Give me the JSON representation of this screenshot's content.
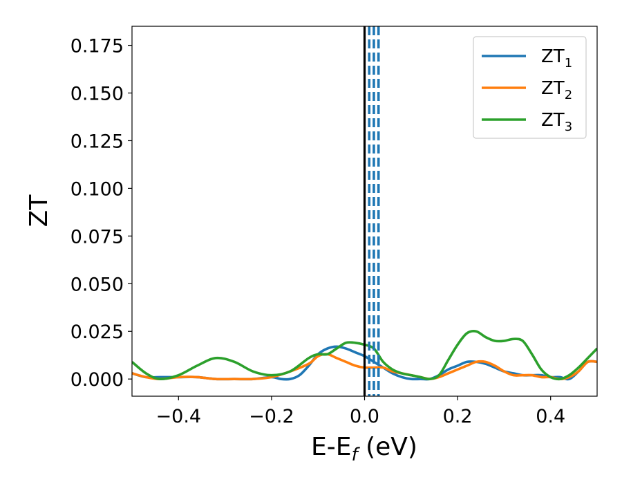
{
  "chart_data": {
    "type": "line",
    "xlabel": "E-E",
    "xlabel_subscript": "f",
    "xlabel_suffix": " (eV)",
    "ylabel": "ZT",
    "xlim": [
      -0.5,
      0.5
    ],
    "ylim": [
      -0.009,
      0.185
    ],
    "x_ticks": [
      -0.4,
      -0.2,
      0.0,
      0.2,
      0.4
    ],
    "x_tick_labels": [
      "−0.4",
      "−0.2",
      "0.0",
      "0.2",
      "0.4"
    ],
    "y_ticks": [
      0.0,
      0.025,
      0.05,
      0.075,
      0.1,
      0.125,
      0.15,
      0.175
    ],
    "y_tick_labels": [
      "0.000",
      "0.025",
      "0.050",
      "0.075",
      "0.100",
      "0.125",
      "0.150",
      "0.175"
    ],
    "grid": false,
    "legend_position": "top-right",
    "fermi_line": {
      "x": 0.0,
      "color": "#000000"
    },
    "dashed_lines": {
      "x": [
        0.01,
        0.02,
        0.03
      ],
      "color": "#1f77b4"
    },
    "series": [
      {
        "name": "ZT",
        "subscript": "1",
        "color": "#1f77b4",
        "x": [
          -0.5,
          -0.47,
          -0.44,
          -0.4,
          -0.36,
          -0.32,
          -0.28,
          -0.24,
          -0.2,
          -0.18,
          -0.16,
          -0.14,
          -0.12,
          -0.1,
          -0.08,
          -0.06,
          -0.04,
          -0.02,
          0.0,
          0.02,
          0.04,
          0.06,
          0.08,
          0.1,
          0.12,
          0.14,
          0.16,
          0.18,
          0.2,
          0.22,
          0.24,
          0.26,
          0.28,
          0.3,
          0.32,
          0.34,
          0.36,
          0.38,
          0.4,
          0.42,
          0.44,
          0.46,
          0.48,
          0.5
        ],
        "y": [
          0.003,
          0.001,
          0.001,
          0.001,
          0.001,
          0.0,
          0.0,
          0.0,
          0.001,
          0.0,
          0.0,
          0.002,
          0.007,
          0.013,
          0.016,
          0.017,
          0.016,
          0.014,
          0.012,
          0.009,
          0.006,
          0.003,
          0.001,
          0.0,
          0.0,
          0.0,
          0.002,
          0.005,
          0.007,
          0.009,
          0.009,
          0.008,
          0.006,
          0.004,
          0.003,
          0.002,
          0.002,
          0.002,
          0.001,
          0.001,
          0.0,
          0.004,
          0.009,
          0.009
        ]
      },
      {
        "name": "ZT",
        "subscript": "2",
        "color": "#ff7f0e",
        "x": [
          -0.5,
          -0.47,
          -0.44,
          -0.4,
          -0.36,
          -0.32,
          -0.28,
          -0.24,
          -0.2,
          -0.16,
          -0.12,
          -0.1,
          -0.08,
          -0.06,
          -0.04,
          -0.02,
          0.0,
          0.02,
          0.04,
          0.06,
          0.08,
          0.1,
          0.12,
          0.14,
          0.16,
          0.18,
          0.2,
          0.22,
          0.24,
          0.26,
          0.28,
          0.3,
          0.32,
          0.34,
          0.36,
          0.38,
          0.4,
          0.42,
          0.44,
          0.46,
          0.48,
          0.5
        ],
        "y": [
          0.003,
          0.001,
          0.0,
          0.001,
          0.001,
          0.0,
          0.0,
          0.0,
          0.001,
          0.004,
          0.008,
          0.012,
          0.013,
          0.011,
          0.009,
          0.007,
          0.006,
          0.006,
          0.006,
          0.004,
          0.003,
          0.002,
          0.001,
          0.0,
          0.001,
          0.003,
          0.005,
          0.007,
          0.009,
          0.009,
          0.007,
          0.004,
          0.002,
          0.002,
          0.002,
          0.001,
          0.001,
          0.0,
          0.001,
          0.004,
          0.009,
          0.009
        ]
      },
      {
        "name": "ZT",
        "subscript": "3",
        "color": "#2ca02c",
        "x": [
          -0.5,
          -0.47,
          -0.44,
          -0.4,
          -0.36,
          -0.32,
          -0.28,
          -0.24,
          -0.2,
          -0.16,
          -0.12,
          -0.1,
          -0.08,
          -0.06,
          -0.04,
          -0.02,
          0.0,
          0.02,
          0.04,
          0.06,
          0.08,
          0.1,
          0.12,
          0.14,
          0.16,
          0.18,
          0.2,
          0.22,
          0.24,
          0.26,
          0.28,
          0.3,
          0.32,
          0.34,
          0.36,
          0.38,
          0.4,
          0.42,
          0.44,
          0.46,
          0.48,
          0.5
        ],
        "y": [
          0.009,
          0.003,
          0.0,
          0.002,
          0.007,
          0.011,
          0.009,
          0.004,
          0.002,
          0.004,
          0.011,
          0.013,
          0.013,
          0.016,
          0.019,
          0.019,
          0.018,
          0.016,
          0.009,
          0.005,
          0.003,
          0.002,
          0.001,
          0.0,
          0.002,
          0.01,
          0.018,
          0.024,
          0.025,
          0.022,
          0.02,
          0.02,
          0.021,
          0.02,
          0.013,
          0.005,
          0.001,
          0.0,
          0.002,
          0.006,
          0.011,
          0.016
        ]
      }
    ]
  }
}
